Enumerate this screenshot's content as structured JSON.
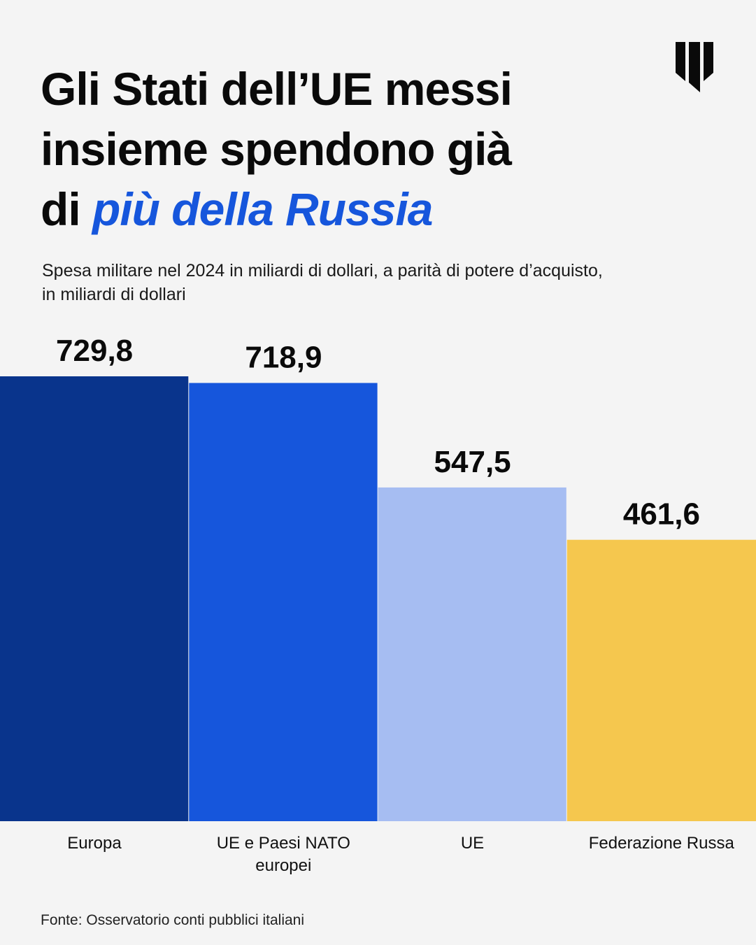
{
  "title": {
    "line1": "Gli Stati dell’UE messi",
    "line2": "insieme spendono già",
    "line3_prefix": "di ",
    "line3_highlight": "più della Russia"
  },
  "subtitle": {
    "line1": "Spesa militare nel 2024 in miliardi di dollari, a parità di potere d’acquisto,",
    "line2": "in miliardi di dollari"
  },
  "source": "Fonte: Osservatorio conti pubblici italiani",
  "logo_icon": "publisher-logo-icon",
  "chart_data": {
    "type": "bar",
    "categories": [
      "Europa",
      "UE e Paesi NATO europei",
      "UE",
      "Federazione Russa"
    ],
    "values": [
      729.8,
      718.9,
      547.5,
      461.6
    ],
    "value_labels": [
      "729,8",
      "718,9",
      "547,5",
      "461,6"
    ],
    "colors": [
      "#09348c",
      "#1656dc",
      "#a6bdf2",
      "#f5c74e"
    ],
    "ylim": [
      0,
      729.8
    ],
    "grid": false,
    "legend": "none"
  }
}
